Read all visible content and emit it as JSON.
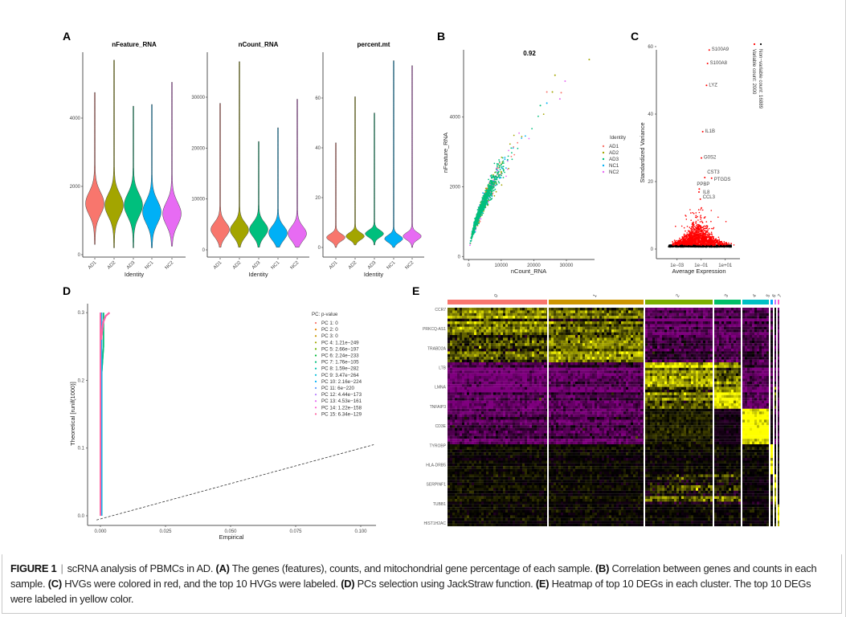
{
  "panel_labels": [
    "A",
    "B",
    "C",
    "D",
    "E"
  ],
  "chart_data": [
    {
      "type": "violin",
      "xlabel": "Identity",
      "panels": [
        {
          "title": "nFeature_RNA",
          "yticks": [
            "0",
            "2000",
            "4000"
          ],
          "ytick_values": [
            0,
            2000,
            4000
          ],
          "samples": [
            {
              "name": "AD1",
              "median": 1500,
              "min": 300,
              "max": 4750
            },
            {
              "name": "AD2",
              "median": 1450,
              "min": 200,
              "max": 5700
            },
            {
              "name": "AD3",
              "median": 1450,
              "min": 200,
              "max": 4350
            },
            {
              "name": "NC1",
              "median": 1250,
              "min": 200,
              "max": 4400
            },
            {
              "name": "NC2",
              "median": 1200,
              "min": 250,
              "max": 5050
            }
          ]
        },
        {
          "title": "nCount_RNA",
          "yticks": [
            "0",
            "10000",
            "20000",
            "30000"
          ],
          "ytick_values": [
            0,
            10000,
            20000,
            30000
          ],
          "samples": [
            {
              "name": "AD1",
              "median": 4000,
              "min": 500,
              "max": 28800
            },
            {
              "name": "AD2",
              "median": 3900,
              "min": 500,
              "max": 37000
            },
            {
              "name": "AD3",
              "median": 4000,
              "min": 500,
              "max": 21300
            },
            {
              "name": "NC1",
              "median": 3300,
              "min": 500,
              "max": 24000
            },
            {
              "name": "NC2",
              "median": 3200,
              "min": 500,
              "max": 29600
            }
          ]
        },
        {
          "title": "percent.mt",
          "yticks": [
            "0",
            "20",
            "40",
            "60"
          ],
          "ytick_values": [
            0,
            20,
            40,
            60
          ],
          "samples": [
            {
              "name": "AD1",
              "median": 4,
              "min": 0,
              "max": 42
            },
            {
              "name": "AD2",
              "median": 4.5,
              "min": 1,
              "max": 60.5
            },
            {
              "name": "AD3",
              "median": 5.5,
              "min": 1,
              "max": 54
            },
            {
              "name": "NC1",
              "median": 3.5,
              "min": 0,
              "max": 75
            },
            {
              "name": "NC2",
              "median": 4.5,
              "min": 0,
              "max": 73
            }
          ]
        }
      ],
      "colors": {
        "AD1": "#F8766D",
        "AD2": "#A3A500",
        "AD3": "#00BF7D",
        "NC1": "#00B0F6",
        "NC2": "#E76BF3"
      }
    },
    {
      "type": "scatter",
      "title": "0.92",
      "xlabel": "nCount_RNA",
      "ylabel": "nFeature_RNA",
      "xticks": [
        "0",
        "10000",
        "20000",
        "30000"
      ],
      "xtick_values": [
        0,
        10000,
        20000,
        30000
      ],
      "yticks": [
        "0",
        "2000",
        "4000"
      ],
      "ytick_values": [
        0,
        2000,
        4000
      ],
      "xlim": [
        0,
        37000
      ],
      "ylim": [
        0,
        5700
      ],
      "legend": {
        "title": "Identity",
        "placement": "right",
        "entries": [
          "AD1",
          "AD2",
          "AD3",
          "NC1",
          "NC2"
        ]
      }
    },
    {
      "type": "scatter",
      "xlabel": "Average Expression",
      "ylabel": "Standardized Variance",
      "xscale": "log",
      "xticks": [
        "1e−03",
        "1e−01",
        "1e+01"
      ],
      "xtick_values": [
        0.001,
        0.1,
        10
      ],
      "yticks": [
        "0",
        "20",
        "40",
        "60"
      ],
      "ytick_values": [
        0,
        20,
        40,
        60
      ],
      "legend": {
        "placement": "right",
        "entries": [
          {
            "label": "Non−variable count: 16889",
            "color": "#000000"
          },
          {
            "label": "Variable count: 2000",
            "color": "#FF0000"
          }
        ]
      },
      "labeled_points": [
        {
          "gene": "S100A9",
          "x": 0.47,
          "y": 59
        },
        {
          "gene": "S100A8",
          "x": 0.34,
          "y": 55
        },
        {
          "gene": "LYZ",
          "x": 0.28,
          "y": 48.5
        },
        {
          "gene": "IL1B",
          "x": 0.135,
          "y": 34.8
        },
        {
          "gene": "G0S2",
          "x": 0.105,
          "y": 27
        },
        {
          "gene": "CST3",
          "x": 0.2,
          "y": 21.2
        },
        {
          "gene": "PTGDS",
          "x": 0.74,
          "y": 21
        },
        {
          "gene": "PPBP",
          "x": 0.07,
          "y": 17.8
        },
        {
          "gene": "IL8",
          "x": 0.066,
          "y": 16.9
        },
        {
          "gene": "CCL3",
          "x": 0.085,
          "y": 14.8
        }
      ]
    },
    {
      "type": "line",
      "xlabel": "Empirical",
      "ylabel": "Theoretical [runif(1000)]",
      "xticks": [
        "0.000",
        "0.025",
        "0.050",
        "0.075",
        "0.100"
      ],
      "xtick_values": [
        0,
        0.025,
        0.05,
        0.075,
        0.1
      ],
      "yticks": [
        "0.0",
        "0.1",
        "0.2",
        "0.3"
      ],
      "ytick_values": [
        0,
        0.1,
        0.2,
        0.3
      ],
      "reference_line": "y = x (dashed)",
      "legend": {
        "title": "PC: p-value",
        "placement": "top-right",
        "entries": [
          {
            "label": "PC 1: 0",
            "color": "#F8766D"
          },
          {
            "label": "PC 2: 0",
            "color": "#E58700"
          },
          {
            "label": "PC 3: 0",
            "color": "#C99800"
          },
          {
            "label": "PC 4: 1.21e−249",
            "color": "#A3A500"
          },
          {
            "label": "PC 5: 2.66e−197",
            "color": "#6BB100"
          },
          {
            "label": "PC 6: 2.24e−233",
            "color": "#00BA38"
          },
          {
            "label": "PC 7: 1.76e−105",
            "color": "#00BF7D"
          },
          {
            "label": "PC 8: 1.59e−282",
            "color": "#00C0AF"
          },
          {
            "label": "PC 9: 3.47e−264",
            "color": "#00BCD8"
          },
          {
            "label": "PC 10: 2.16e−224",
            "color": "#00B0F6"
          },
          {
            "label": "PC 11: 6e−220",
            "color": "#619CFF"
          },
          {
            "label": "PC 12: 4.44e−173",
            "color": "#B983FF"
          },
          {
            "label": "PC 13: 4.53e−161",
            "color": "#E76BF3"
          },
          {
            "label": "PC 14: 1.22e−158",
            "color": "#FD61D1"
          },
          {
            "label": "PC 15: 6.34e−129",
            "color": "#FF67A4"
          }
        ]
      }
    },
    {
      "type": "heatmap",
      "clusters": [
        {
          "name": "0",
          "color": "#F8766D"
        },
        {
          "name": "1",
          "color": "#CD9600"
        },
        {
          "name": "2",
          "color": "#7CAE00"
        },
        {
          "name": "3",
          "color": "#00BE67"
        },
        {
          "name": "4",
          "color": "#00BFC4"
        },
        {
          "name": "5",
          "color": "#00A9FF"
        },
        {
          "name": "6",
          "color": "#C77CFF"
        },
        {
          "name": "7",
          "color": "#FF61CC"
        }
      ],
      "gene_labels": [
        "CCR7",
        "PRKCQ-AS1",
        "TRABD2A",
        "LTB",
        "LMNA",
        "TNFAIP3",
        "CD3E",
        "TYROBP",
        "HLA-DRB5",
        "SERPINF1",
        "TUBB1",
        "HIST1H2AC"
      ],
      "colormap": {
        "low": "#800080",
        "mid": "#000000",
        "high": "#FFFF00"
      }
    }
  ],
  "caption": {
    "figure_label": "FIGURE 1",
    "t0": "scRNA analysis of PBMCs in AD. ",
    "a": "(A)",
    "ta": " The genes (features), counts, and mitochondrial gene percentage of each sample. ",
    "b": "(B)",
    "tb": " Correlation between genes and counts in each sample. ",
    "c": "(C)",
    "tc": " HVGs were colored in red, and the top 10 HVGs were labeled. ",
    "d": "(D)",
    "td": " PCs selection using JackStraw function. ",
    "e": "(E)",
    "te": " Heatmap of top 10 DEGs in each cluster. The top 10 DEGs were labeled in yellow color."
  }
}
